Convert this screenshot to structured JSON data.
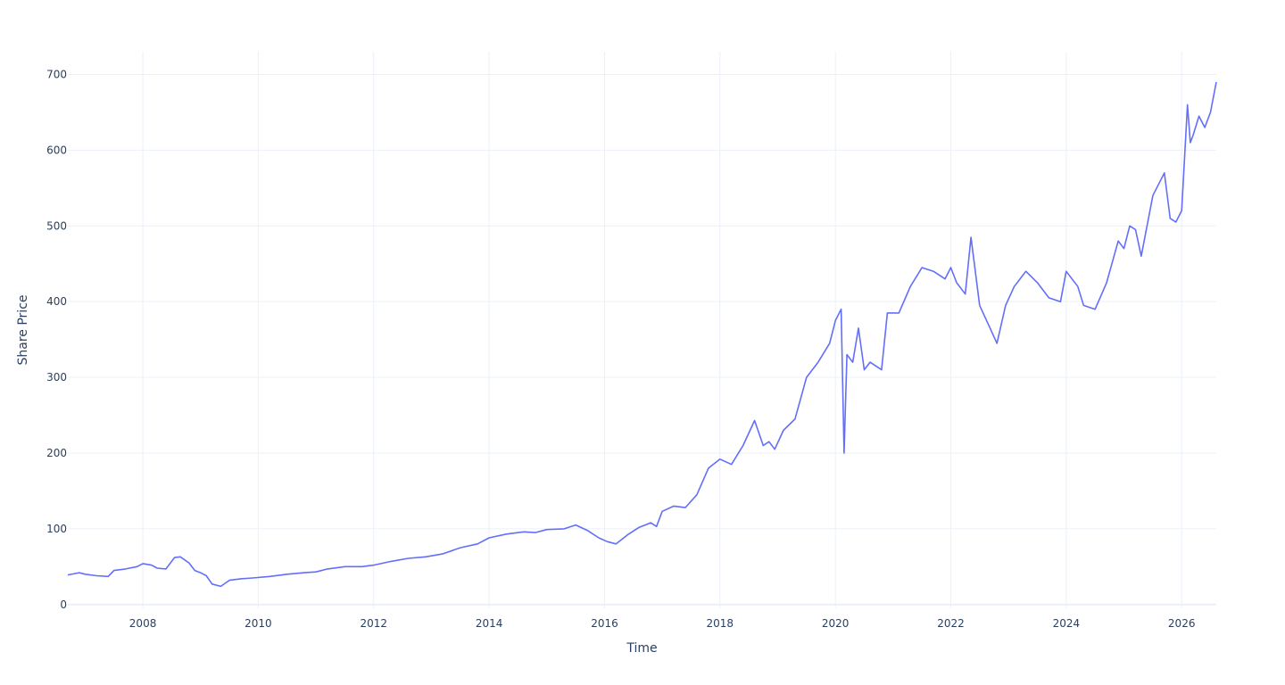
{
  "chart_data": {
    "type": "line",
    "title": "",
    "xlabel": "Time",
    "ylabel": "Share Price",
    "xlim": [
      2006.7,
      2026.6
    ],
    "ylim": [
      -5,
      730
    ],
    "x_ticks": [
      "2008",
      "2010",
      "2012",
      "2014",
      "2016",
      "2018",
      "2020",
      "2022",
      "2024",
      "2026"
    ],
    "y_ticks": [
      "0",
      "100",
      "200",
      "300",
      "400",
      "500",
      "600",
      "700"
    ],
    "grid": true,
    "legend": "none",
    "colors": {
      "line": "#636efa",
      "grid": "#ebf0f8",
      "text": "#2a3f5f"
    },
    "series": [
      {
        "x": [
          2006.7,
          2006.9,
          2007.0,
          2007.2,
          2007.4,
          2007.5,
          2007.7,
          2007.9,
          2008.0,
          2008.15,
          2008.25,
          2008.4,
          2008.55,
          2008.65,
          2008.8,
          2008.9,
          2009.0,
          2009.1,
          2009.2,
          2009.35,
          2009.5,
          2009.7,
          2009.9,
          2010.2,
          2010.5,
          2010.8,
          2011.0,
          2011.2,
          2011.5,
          2011.8,
          2012.0,
          2012.3,
          2012.6,
          2012.9,
          2013.2,
          2013.5,
          2013.8,
          2014.0,
          2014.3,
          2014.6,
          2014.8,
          2015.0,
          2015.3,
          2015.5,
          2015.7,
          2015.9,
          2016.05,
          2016.2,
          2016.4,
          2016.6,
          2016.8,
          2016.9,
          2017.0,
          2017.2,
          2017.4,
          2017.6,
          2017.8,
          2018.0,
          2018.2,
          2018.4,
          2018.6,
          2018.75,
          2018.85,
          2018.95,
          2019.1,
          2019.3,
          2019.5,
          2019.7,
          2019.9,
          2020.0,
          2020.1,
          2020.15,
          2020.2,
          2020.3,
          2020.4,
          2020.5,
          2020.6,
          2020.8,
          2020.9,
          2021.1,
          2021.3,
          2021.5,
          2021.7,
          2021.9,
          2022.0,
          2022.1,
          2022.25,
          2022.35,
          2022.5,
          2022.65,
          2022.8,
          2022.95,
          2023.1,
          2023.3,
          2023.5,
          2023.7,
          2023.9,
          2024.0,
          2024.2,
          2024.3,
          2024.5,
          2024.7,
          2024.9,
          2025.0,
          2025.1,
          2025.2,
          2025.3,
          2025.5,
          2025.7,
          2025.8,
          2025.9,
          2026.0,
          2026.1,
          2026.15,
          2026.2,
          2026.3,
          2026.4,
          2026.5,
          2026.6
        ],
        "y": [
          39,
          42,
          40,
          38,
          37,
          45,
          47,
          50,
          54,
          52,
          48,
          47,
          62,
          63,
          55,
          45,
          42,
          38,
          27,
          24,
          32,
          34,
          35,
          37,
          40,
          42,
          43,
          47,
          50,
          50,
          52,
          57,
          61,
          63,
          67,
          75,
          80,
          88,
          93,
          96,
          95,
          99,
          100,
          105,
          98,
          88,
          83,
          80,
          92,
          102,
          108,
          103,
          123,
          130,
          128,
          145,
          180,
          192,
          185,
          210,
          243,
          210,
          215,
          205,
          230,
          245,
          300,
          320,
          345,
          375,
          390,
          200,
          330,
          320,
          365,
          310,
          320,
          310,
          385,
          385,
          420,
          445,
          440,
          430,
          445,
          425,
          410,
          485,
          395,
          370,
          345,
          395,
          420,
          440,
          425,
          405,
          400,
          440,
          420,
          395,
          390,
          425,
          480,
          470,
          500,
          495,
          460,
          540,
          570,
          510,
          505,
          520,
          660,
          610,
          620,
          645,
          630,
          650,
          690
        ]
      }
    ]
  }
}
